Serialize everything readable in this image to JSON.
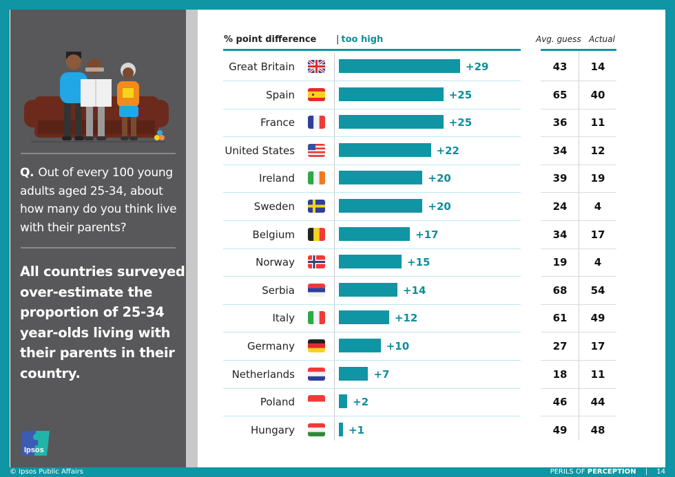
{
  "left_panel": {
    "question_prefix": "Q.",
    "question": "Out of every 100 young adults aged 25-34, about how many do you think live with their parents?",
    "headline": "All countries surveyed over-estimate the proportion of 25-34 year-olds living with their parents in their country.",
    "logo_text": "Ipsos"
  },
  "footer": {
    "copyright": "© Ipsos Public Affairs",
    "series_prefix": "PERILS OF",
    "series_bold": "PERCEPTION",
    "separator": "|",
    "page_number": "14"
  },
  "table_headers": {
    "diff": "% point difference",
    "too_high_sep": "|",
    "too_high": "too high",
    "avg_guess": "Avg. guess",
    "actual": "Actual"
  },
  "colors": {
    "accent": "#0f95a4",
    "panel": "#58585a"
  },
  "chart_data": {
    "type": "bar",
    "orientation": "horizontal",
    "title": "",
    "xlabel": "% point difference",
    "ylabel": "",
    "legend": "too high",
    "xlim": [
      0,
      29
    ],
    "categories": [
      "Great Britain",
      "Spain",
      "France",
      "United States",
      "Ireland",
      "Sweden",
      "Belgium",
      "Norway",
      "Serbia",
      "Italy",
      "Germany",
      "Netherlands",
      "Poland",
      "Hungary"
    ],
    "values": [
      29,
      25,
      25,
      22,
      20,
      20,
      17,
      15,
      14,
      12,
      10,
      7,
      2,
      1
    ],
    "value_labels": [
      "+29",
      "+25",
      "+25",
      "+22",
      "+20",
      "+20",
      "+17",
      "+15",
      "+14",
      "+12",
      "+10",
      "+7",
      "+2",
      "+1"
    ],
    "flags": [
      "gb",
      "es",
      "fr",
      "us",
      "ie",
      "se",
      "be",
      "no",
      "rs",
      "it",
      "de",
      "nl",
      "pl",
      "hu"
    ],
    "avg_guess": [
      43,
      65,
      36,
      34,
      39,
      24,
      34,
      19,
      68,
      61,
      27,
      18,
      46,
      49
    ],
    "actual": [
      14,
      40,
      11,
      12,
      19,
      4,
      17,
      4,
      54,
      49,
      17,
      11,
      44,
      48
    ]
  }
}
